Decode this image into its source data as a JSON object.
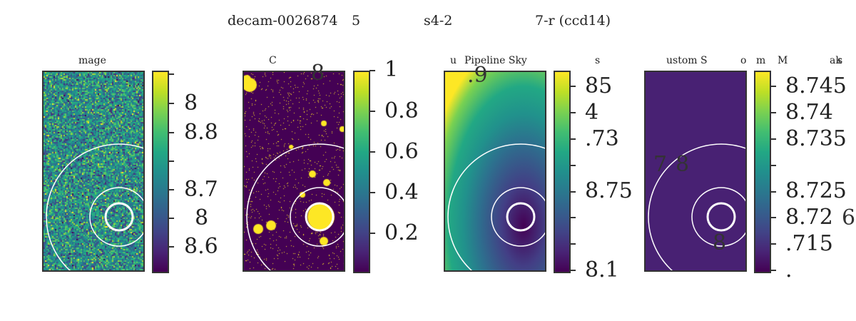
{
  "title": {
    "part1": "decam-0026874",
    "part2": "5",
    "part3": "s4-2",
    "part4": "7-r (ccd14)"
  },
  "panels": [
    {
      "title": [
        "mage"
      ],
      "colorbar_labels": [
        "8",
        "8.8",
        "8.7",
        "8",
        "8.6"
      ]
    },
    {
      "title": [
        "C"
      ],
      "colorbar_labels": [
        "1",
        "0.8",
        "0.6",
        "0.4",
        "0.2"
      ],
      "overlay": [
        "8"
      ]
    },
    {
      "title": [
        "u",
        "Pipeline Sky",
        "s"
      ],
      "colorbar_labels": [
        "85",
        "4",
        ".73",
        "8.75",
        "8.1"
      ],
      "overlay": [
        ".9"
      ]
    },
    {
      "title": [
        "ustom S",
        "o",
        "m",
        "M",
        "ak",
        "s"
      ],
      "colorbar_labels": [
        "8.745",
        "8.74",
        "8.735",
        "8.725",
        "8.72",
        ".715",
        "."
      ],
      "overlay": [
        "7",
        "8",
        "8",
        "6"
      ]
    }
  ],
  "colors": {
    "viridis_low": "#440154",
    "viridis_mid": "#21908d",
    "viridis_high": "#fde725",
    "circle": "#ffffff"
  }
}
